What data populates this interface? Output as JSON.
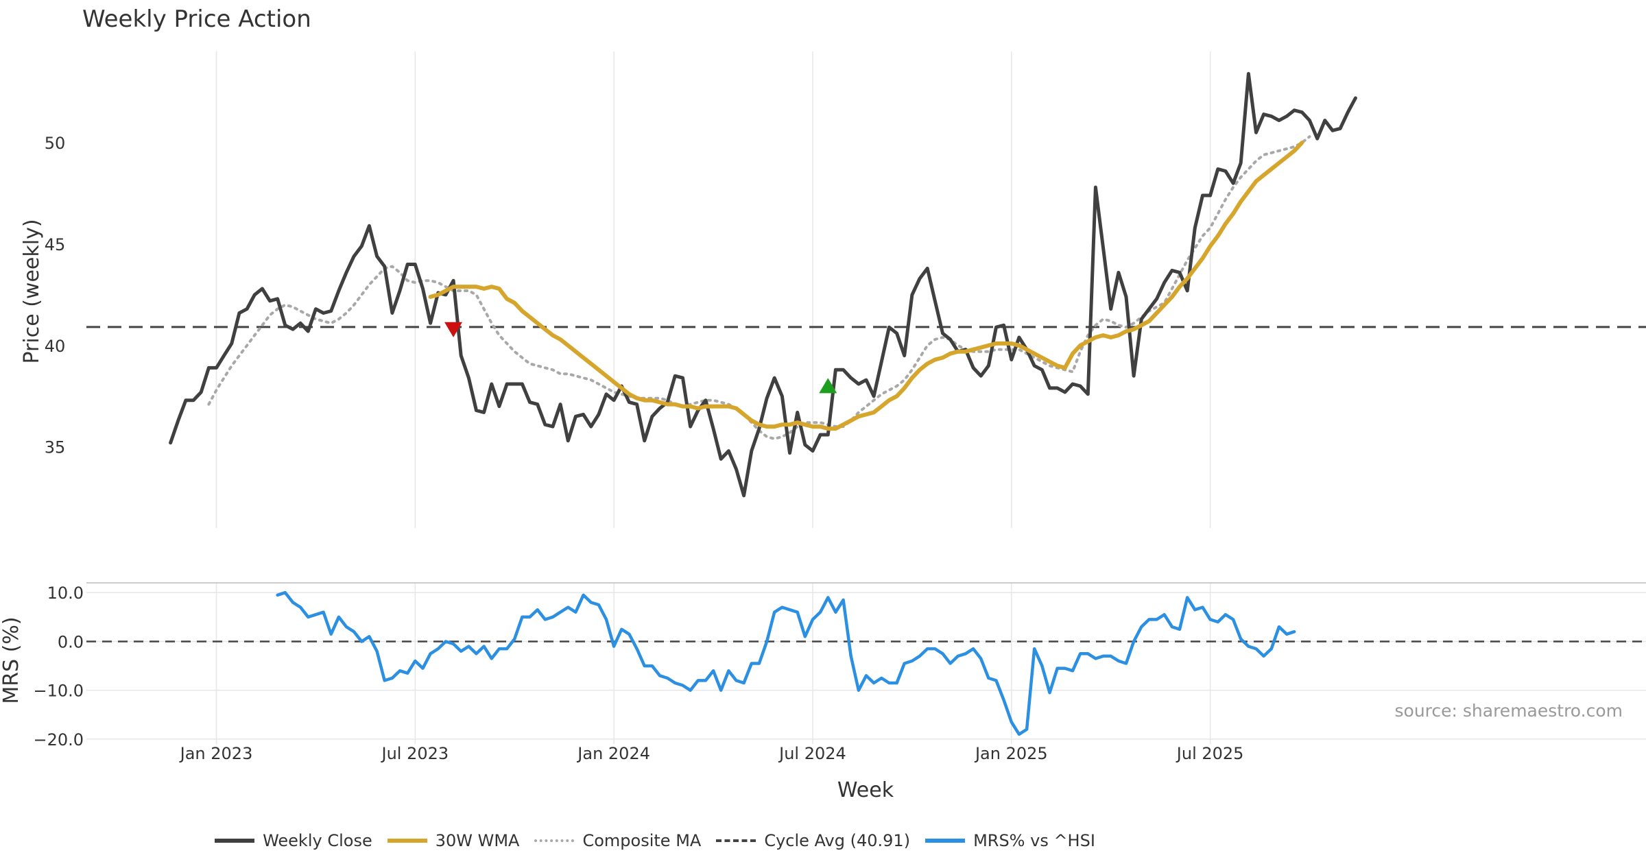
{
  "title": "Weekly Price Action",
  "source_text": "source: sharemaestro.com",
  "colors": {
    "close": "#404040",
    "wma": "#d6a62c",
    "composite": "#a8a8a8",
    "cycle": "#444444",
    "mrs": "#2b8fe2",
    "up": "#1e9e1e",
    "down": "#cc1010",
    "grid": "#e6e6e6",
    "text": "#333333",
    "source": "#999999"
  },
  "legend": [
    {
      "label": "Weekly Close",
      "series": "close"
    },
    {
      "label": "30W WMA",
      "series": "wma"
    },
    {
      "label": "Composite MA",
      "series": "composite"
    },
    {
      "label": "Cycle Avg (40.91)",
      "series": "cycle"
    },
    {
      "label": "MRS% vs ^HSI",
      "series": "mrs"
    }
  ],
  "chart_data": [
    {
      "type": "line",
      "panel": "price",
      "title": "Weekly Price Action",
      "ylabel": "Price (weekly)",
      "ylim": [
        31,
        54.5
      ],
      "yticks": [
        35,
        40,
        45,
        50
      ],
      "xlim": [
        -11,
        193
      ],
      "x_unit": "weeks since 2022-11-21",
      "cycle_avg": 40.91,
      "series": [
        {
          "name": "Weekly Close",
          "key": "close",
          "start": 0,
          "values": [
            35.2,
            36.3,
            37.3,
            37.3,
            37.7,
            38.9,
            38.9,
            39.5,
            40.1,
            41.6,
            41.8,
            42.5,
            42.8,
            42.2,
            42.3,
            41.0,
            40.8,
            41.1,
            40.7,
            41.8,
            41.6,
            41.7,
            42.7,
            43.6,
            44.4,
            44.9,
            45.9,
            44.4,
            43.9,
            41.6,
            42.7,
            44.0,
            44.0,
            42.8,
            41.1,
            42.6,
            42.5,
            43.2,
            39.5,
            38.4,
            36.8,
            36.7,
            38.1,
            37.0,
            38.1,
            38.1,
            38.1,
            37.2,
            37.1,
            36.1,
            36.0,
            37.1,
            35.3,
            36.5,
            36.6,
            36.0,
            36.6,
            37.6,
            37.3,
            38.0,
            37.2,
            37.1,
            35.3,
            36.5,
            36.9,
            37.2,
            38.5,
            38.4,
            36.0,
            36.8,
            37.3,
            35.9,
            34.4,
            34.8,
            33.9,
            32.6,
            34.8,
            35.9,
            37.4,
            38.4,
            37.5,
            34.7,
            36.7,
            35.1,
            34.8,
            35.6,
            35.6,
            38.8,
            38.8,
            38.4,
            38.1,
            38.3,
            37.5,
            39.2,
            40.9,
            40.6,
            39.5,
            42.5,
            43.3,
            43.8,
            42.2,
            40.6,
            40.3,
            39.7,
            39.8,
            38.9,
            38.5,
            39.0,
            40.9,
            41.0,
            39.3,
            40.4,
            39.8,
            39.0,
            38.8,
            37.9,
            37.9,
            37.7,
            38.1,
            38.0,
            37.6,
            47.8,
            44.8,
            41.8,
            43.6,
            42.4,
            38.5,
            41.3,
            41.8,
            42.3,
            43.1,
            43.7,
            43.6,
            42.7,
            45.8,
            47.4,
            47.4,
            48.7,
            48.6,
            48.0,
            49.0,
            53.4,
            50.5,
            51.4,
            51.3,
            51.1,
            51.3,
            51.6,
            51.5,
            51.1,
            50.2,
            51.1,
            50.6,
            50.7,
            51.5,
            52.2
          ]
        },
        {
          "name": "30W WMA",
          "key": "wma",
          "start": 34,
          "values": [
            42.4,
            42.5,
            42.7,
            42.9,
            42.9,
            42.9,
            42.9,
            42.8,
            42.9,
            42.8,
            42.3,
            42.1,
            41.7,
            41.4,
            41.1,
            40.8,
            40.5,
            40.3,
            40.0,
            39.7,
            39.4,
            39.1,
            38.8,
            38.5,
            38.2,
            37.9,
            37.6,
            37.4,
            37.3,
            37.3,
            37.2,
            37.1,
            37.1,
            37.0,
            37.0,
            36.9,
            37.0,
            37.0,
            37.0,
            37.0,
            36.9,
            36.6,
            36.3,
            36.1,
            36.0,
            36.0,
            36.1,
            36.1,
            36.2,
            36.1,
            36.0,
            36.0,
            35.9,
            35.9,
            36.1,
            36.3,
            36.5,
            36.6,
            36.7,
            37.0,
            37.3,
            37.5,
            37.9,
            38.4,
            38.8,
            39.1,
            39.3,
            39.4,
            39.6,
            39.7,
            39.7,
            39.8,
            39.9,
            40.0,
            40.1,
            40.1,
            40.1,
            40.0,
            39.8,
            39.6,
            39.4,
            39.2,
            39.0,
            38.9,
            39.6,
            40.0,
            40.2,
            40.4,
            40.5,
            40.4,
            40.5,
            40.7,
            40.8,
            41.0,
            41.2,
            41.6,
            42.0,
            42.4,
            42.9,
            43.3,
            43.8,
            44.3,
            44.9,
            45.4,
            46.0,
            46.5,
            47.1,
            47.6,
            48.1,
            48.4,
            48.7,
            49.0,
            49.3,
            49.6,
            50.0
          ]
        },
        {
          "name": "Composite MA",
          "key": "composite",
          "start": 5,
          "values": [
            37.1,
            37.8,
            38.4,
            39.0,
            39.5,
            40.0,
            40.5,
            41.0,
            41.5,
            41.8,
            42.0,
            41.9,
            41.7,
            41.5,
            41.3,
            41.2,
            41.1,
            41.3,
            41.6,
            42.0,
            42.5,
            43.0,
            43.4,
            43.8,
            43.9,
            43.6,
            43.2,
            43.1,
            43.2,
            43.2,
            43.1,
            42.9,
            42.7,
            42.7,
            42.7,
            42.5,
            41.8,
            41.1,
            40.5,
            40.1,
            39.7,
            39.4,
            39.1,
            39.0,
            38.9,
            38.8,
            38.6,
            38.6,
            38.5,
            38.4,
            38.3,
            38.1,
            37.9,
            37.7,
            37.6,
            37.5,
            37.4,
            37.4,
            37.4,
            37.4,
            37.3,
            37.1,
            37.0,
            37.1,
            37.2,
            37.3,
            37.3,
            37.2,
            37.1,
            36.9,
            36.6,
            36.2,
            35.8,
            35.5,
            35.4,
            35.5,
            35.7,
            36.0,
            36.2,
            36.2,
            36.2,
            36.1,
            36.0,
            36.0,
            36.3,
            36.7,
            37.0,
            37.3,
            37.6,
            37.8,
            38.0,
            38.3,
            38.8,
            39.4,
            40.0,
            40.3,
            40.4,
            40.3,
            40.0,
            39.8,
            39.7,
            39.7,
            39.7,
            39.8,
            39.8,
            39.8,
            39.8,
            39.6,
            39.4,
            39.2,
            39.0,
            38.9,
            38.8,
            38.7,
            39.7,
            40.5,
            41.0,
            41.3,
            41.2,
            41.0,
            40.9,
            41.1,
            41.4,
            41.7,
            41.9,
            42.1,
            42.8,
            43.5,
            44.2,
            44.8,
            45.4,
            45.8,
            46.5,
            47.2,
            47.8,
            48.3,
            48.7,
            49.1,
            49.4,
            49.5,
            49.6,
            49.7,
            49.8,
            50.0,
            50.3
          ]
        }
      ],
      "markers": [
        {
          "type": "sell",
          "symbol": "triangle-down",
          "x": 37,
          "y": 40.8
        },
        {
          "type": "buy",
          "symbol": "triangle-up",
          "x": 86,
          "y": 38.0
        }
      ]
    },
    {
      "type": "line",
      "panel": "mrs",
      "ylabel": "MRS (%)",
      "xlabel": "Week",
      "ylim": [
        -21,
        12
      ],
      "yticks": [
        10,
        0,
        -10,
        -20
      ],
      "ytick_labels": [
        "10.0",
        "0.0",
        "−10.0",
        "−20.0"
      ],
      "xlim": [
        -11,
        193
      ],
      "xticks": [
        6,
        32,
        58,
        84,
        110,
        136
      ],
      "xtick_labels": [
        "Jan 2023",
        "Jul 2023",
        "Jan 2024",
        "Jul 2024",
        "Jan 2025",
        "Jul 2025"
      ],
      "zero_line": 0,
      "series": [
        {
          "name": "MRS% vs ^HSI",
          "key": "mrs",
          "start": 14,
          "values": [
            9.5,
            10.0,
            8.0,
            7.0,
            5.0,
            5.5,
            6.0,
            1.5,
            5.0,
            3.0,
            2.0,
            0.0,
            1.0,
            -2.0,
            -8.0,
            -7.5,
            -6.0,
            -6.5,
            -4.0,
            -5.5,
            -2.5,
            -1.5,
            0.0,
            -0.5,
            -2.0,
            -1.0,
            -2.5,
            -1.0,
            -3.5,
            -1.5,
            -1.5,
            0.5,
            5.0,
            5.0,
            6.5,
            4.5,
            5.0,
            6.0,
            7.0,
            6.0,
            9.5,
            8.0,
            7.5,
            4.5,
            -1.0,
            2.5,
            1.5,
            -1.5,
            -5.0,
            -5.0,
            -7.0,
            -7.5,
            -8.5,
            -9.0,
            -10.0,
            -8.0,
            -8.0,
            -6.0,
            -10.0,
            -6.0,
            -8.0,
            -8.5,
            -4.5,
            -4.5,
            0.0,
            6.0,
            7.0,
            6.5,
            6.0,
            1.0,
            4.5,
            6.0,
            9.0,
            6.0,
            8.5,
            -3.0,
            -10.0,
            -7.0,
            -8.5,
            -7.5,
            -8.5,
            -8.5,
            -4.5,
            -4.0,
            -3.0,
            -1.5,
            -1.5,
            -2.5,
            -4.5,
            -3.0,
            -2.5,
            -1.5,
            -3.5,
            -7.5,
            -8.0,
            -12.0,
            -16.5,
            -19.0,
            -18.0,
            -1.5,
            -5.0,
            -10.5,
            -5.5,
            -5.5,
            -6.0,
            -2.5,
            -2.5,
            -3.5,
            -3.0,
            -3.0,
            -4.0,
            -4.5,
            0.0,
            3.0,
            4.5,
            4.5,
            5.5,
            3.0,
            2.5,
            9.0,
            6.5,
            7.0,
            4.5,
            4.0,
            5.5,
            4.5,
            0.5,
            -1.0,
            -1.5,
            -3.0,
            -1.5,
            3.0,
            1.5,
            2.0
          ]
        }
      ]
    }
  ]
}
